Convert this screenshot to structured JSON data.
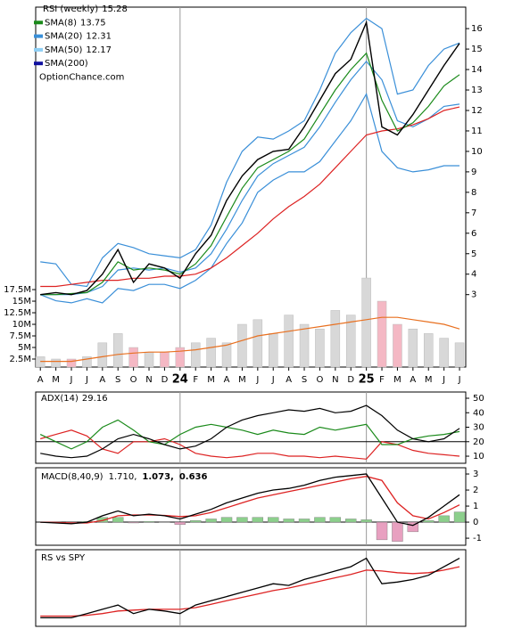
{
  "chart_data": {
    "type": "stock",
    "watermark": "OptionChance.com",
    "legend": [
      {
        "label": "RSI (weekly)",
        "value": 15.28,
        "color": "#000000"
      },
      {
        "label": "SMA(8)",
        "value": 13.75,
        "color": "#1a8a1a"
      },
      {
        "label": "SMA(20)",
        "value": 12.31,
        "color": "#3a8fd8"
      },
      {
        "label": "SMA(50)",
        "value": 12.17,
        "color": "#8fd0f5"
      },
      {
        "label": "SMA(200)",
        "value": null,
        "color": "#1010a0"
      }
    ],
    "x": [
      0,
      1,
      2,
      3,
      4,
      5,
      6,
      7,
      8,
      9,
      10,
      11,
      12,
      13,
      14,
      15,
      16,
      17,
      18,
      19,
      20,
      21,
      22,
      23,
      24,
      25,
      26,
      27
    ],
    "xlim": [
      -0.3,
      27.4
    ],
    "xticks": [
      {
        "value": 0,
        "label": "A"
      },
      {
        "value": 1,
        "label": "M"
      },
      {
        "value": 2,
        "label": "J"
      },
      {
        "value": 3,
        "label": "J"
      },
      {
        "value": 4,
        "label": "A"
      },
      {
        "value": 5,
        "label": "S"
      },
      {
        "value": 6,
        "label": "O"
      },
      {
        "value": 7,
        "label": "N"
      },
      {
        "value": 8,
        "label": "D"
      },
      {
        "value": 9,
        "label": "24"
      },
      {
        "value": 10,
        "label": "F"
      },
      {
        "value": 11,
        "label": "M"
      },
      {
        "value": 12,
        "label": "A"
      },
      {
        "value": 13,
        "label": "M"
      },
      {
        "value": 14,
        "label": "J"
      },
      {
        "value": 15,
        "label": "J"
      },
      {
        "value": 16,
        "label": "A"
      },
      {
        "value": 17,
        "label": "S"
      },
      {
        "value": 18,
        "label": "O"
      },
      {
        "value": 19,
        "label": "N"
      },
      {
        "value": 20,
        "label": "D"
      },
      {
        "value": 21,
        "label": "25"
      },
      {
        "value": 22,
        "label": "F"
      },
      {
        "value": 23,
        "label": "M"
      },
      {
        "value": 24,
        "label": "A"
      },
      {
        "value": 25,
        "label": "M"
      },
      {
        "value": 26,
        "label": "J"
      },
      {
        "value": 27,
        "label": "J"
      }
    ],
    "price": {
      "ylim": [
        -0.54,
        17.05
      ],
      "yticks": [
        3,
        4,
        5,
        6,
        7,
        8,
        9,
        10,
        11,
        12,
        13,
        14,
        15,
        16
      ],
      "series": [
        {
          "color": "#3a8fd8",
          "values": [
            4.6,
            4.5,
            3.5,
            3.4,
            4.8,
            5.5,
            5.3,
            5.0,
            4.9,
            4.8,
            5.2,
            6.4,
            8.5,
            10.0,
            10.7,
            10.6,
            11.0,
            11.5,
            13.0,
            14.8,
            15.8,
            16.5,
            16.0,
            12.8,
            13.0,
            14.2,
            15.0,
            15.3
          ]
        },
        {
          "color": "#3a8fd8",
          "values": [
            3.0,
            2.7,
            2.6,
            2.8,
            2.6,
            3.3,
            3.2,
            3.5,
            3.5,
            3.3,
            3.7,
            4.3,
            5.5,
            6.5,
            8.0,
            8.6,
            9.0,
            9.0,
            9.5,
            10.5,
            11.5,
            12.8,
            10.0,
            9.2,
            9.0,
            9.1,
            9.3,
            9.3
          ]
        },
        {
          "color": "#3a8fd8",
          "values": [
            3.0,
            3.0,
            3.0,
            3.1,
            3.4,
            4.2,
            4.3,
            4.2,
            4.3,
            4.1,
            4.3,
            5.0,
            6.2,
            7.6,
            8.8,
            9.4,
            9.8,
            10.2,
            11.2,
            12.4,
            13.5,
            14.4,
            13.5,
            11.5,
            11.2,
            11.6,
            12.2,
            12.31
          ]
        },
        {
          "color": "#dd2222",
          "values": [
            3.4,
            3.4,
            3.5,
            3.6,
            3.7,
            3.7,
            3.8,
            3.8,
            3.9,
            3.9,
            4.0,
            4.3,
            4.8,
            5.4,
            6.0,
            6.7,
            7.3,
            7.8,
            8.4,
            9.2,
            10.0,
            10.8,
            11.0,
            11.1,
            11.3,
            11.6,
            12.0,
            12.17
          ]
        },
        {
          "color": "#1a8a1a",
          "values": [
            3.0,
            3.0,
            3.05,
            3.1,
            3.6,
            4.6,
            4.2,
            4.3,
            4.2,
            4.0,
            4.5,
            5.4,
            6.8,
            8.2,
            9.2,
            9.6,
            10.0,
            10.6,
            11.8,
            13.0,
            14.0,
            14.8,
            12.5,
            11.0,
            11.4,
            12.2,
            13.2,
            13.75
          ]
        },
        {
          "color": "#000000",
          "values": [
            3.0,
            3.1,
            3.0,
            3.2,
            4.0,
            5.2,
            3.6,
            4.5,
            4.3,
            3.8,
            5.0,
            5.9,
            7.6,
            8.8,
            9.6,
            10.0,
            10.1,
            11.2,
            12.5,
            13.8,
            14.5,
            16.3,
            11.2,
            10.8,
            11.8,
            13.0,
            14.2,
            15.28
          ]
        }
      ]
    },
    "volume": {
      "ylim": [
        0.77,
        78.5
      ],
      "yticks": [
        {
          "value": 2.5,
          "label": "2.5M"
        },
        {
          "value": 5,
          "label": "5M"
        },
        {
          "value": 7.5,
          "label": "7.5M"
        },
        {
          "value": 10,
          "label": "10M"
        },
        {
          "value": 12.5,
          "label": "12.5M"
        },
        {
          "value": 15,
          "label": "15M"
        },
        {
          "value": 17.5,
          "label": "17.5M"
        }
      ],
      "up_color": "#d8d8d8",
      "down_color": "#f4b8c4",
      "values": [
        3,
        2.5,
        2.5,
        3,
        6,
        8,
        5,
        4,
        4,
        5,
        6,
        7,
        6,
        10,
        11,
        8,
        12,
        10,
        9,
        13,
        12,
        20,
        15,
        10,
        9,
        8,
        7,
        6
      ],
      "average": {
        "color": "#e87020",
        "values": [
          2,
          2,
          2,
          2.5,
          3,
          3.5,
          3.8,
          4,
          4,
          4.2,
          4.5,
          5,
          5.5,
          6.5,
          7.5,
          8,
          8.5,
          9,
          9.5,
          10,
          10.5,
          11,
          11.5,
          11.5,
          11,
          10.5,
          10,
          9
        ]
      }
    },
    "adx": {
      "label": "ADX(14)",
      "value": 29.16,
      "ylim": [
        5.1,
        54.3
      ],
      "yticks": [
        10,
        20,
        30,
        40,
        50
      ],
      "reference": 20,
      "series": [
        {
          "color": "#dd2222",
          "values": [
            22,
            25,
            28,
            24,
            15,
            12,
            20,
            20,
            22,
            18,
            12,
            10,
            9,
            10,
            12,
            12,
            10,
            10,
            9,
            10,
            9,
            8,
            20,
            18,
            14,
            12,
            11,
            10
          ]
        },
        {
          "color": "#1a8a1a",
          "values": [
            25,
            20,
            15,
            20,
            30,
            35,
            28,
            20,
            18,
            25,
            30,
            32,
            30,
            28,
            25,
            28,
            26,
            25,
            30,
            28,
            30,
            32,
            18,
            18,
            22,
            24,
            25,
            27
          ]
        },
        {
          "color": "#000000",
          "values": [
            12,
            10,
            9,
            10,
            15,
            22,
            25,
            22,
            18,
            15,
            17,
            22,
            30,
            35,
            38,
            40,
            42,
            41,
            43,
            40,
            41,
            45,
            38,
            28,
            22,
            20,
            22,
            29.16
          ]
        }
      ]
    },
    "macd": {
      "label": "MACD(8,40,9)",
      "value": 1.71,
      "value_label": "1.710,",
      "signal_value": 1.073,
      "signal_label": "1.073,",
      "signal_color": "#dd2222",
      "hist_value": 0.636,
      "hist_label": "0.636",
      "hist_color": "#3a6fc8",
      "ylim": [
        -1.44,
        3.39
      ],
      "yticks": [
        -1,
        0,
        1,
        2,
        3
      ],
      "up_color": "#8ccf8c",
      "down_color": "#e8a0c0",
      "histogram": [
        0,
        -0.03,
        -0.05,
        0.05,
        0.3,
        0.3,
        -0.05,
        0.05,
        -0.02,
        -0.15,
        0.1,
        0.2,
        0.3,
        0.3,
        0.3,
        0.3,
        0.2,
        0.2,
        0.3,
        0.3,
        0.2,
        0.15,
        -1.1,
        -1.2,
        -0.6,
        0.1,
        0.4,
        0.636
      ],
      "series": [
        {
          "color": "#dd2222",
          "values": [
            0,
            -0.02,
            -0.05,
            -0.05,
            0.1,
            0.4,
            0.45,
            0.45,
            0.42,
            0.35,
            0.4,
            0.6,
            0.9,
            1.2,
            1.5,
            1.7,
            1.9,
            2.1,
            2.3,
            2.5,
            2.7,
            2.85,
            2.6,
            1.2,
            0.4,
            0.2,
            0.6,
            1.073
          ]
        },
        {
          "color": "#000000",
          "values": [
            0,
            -0.05,
            -0.1,
            0,
            0.4,
            0.7,
            0.4,
            0.5,
            0.4,
            0.2,
            0.5,
            0.8,
            1.2,
            1.5,
            1.8,
            2.0,
            2.1,
            2.3,
            2.6,
            2.8,
            2.9,
            3.0,
            1.5,
            0.0,
            -0.2,
            0.3,
            1.0,
            1.71
          ]
        }
      ]
    },
    "rs": {
      "label": "RS vs SPY",
      "ylim": [
        0,
        9
      ],
      "series": [
        {
          "color": "#dd2222",
          "values": [
            1.2,
            1.2,
            1.2,
            1.3,
            1.5,
            1.8,
            1.9,
            2,
            2,
            2,
            2.2,
            2.6,
            3,
            3.4,
            3.8,
            4.2,
            4.5,
            4.9,
            5.3,
            5.7,
            6.1,
            6.6,
            6.5,
            6.3,
            6.2,
            6.3,
            6.6,
            7
          ]
        },
        {
          "color": "#000000",
          "values": [
            1,
            1,
            1,
            1.5,
            2,
            2.5,
            1.5,
            2,
            1.8,
            1.5,
            2.5,
            3,
            3.5,
            4,
            4.5,
            5,
            4.8,
            5.5,
            6,
            6.5,
            7,
            8,
            5,
            5.2,
            5.5,
            6,
            7,
            8
          ]
        }
      ]
    }
  }
}
